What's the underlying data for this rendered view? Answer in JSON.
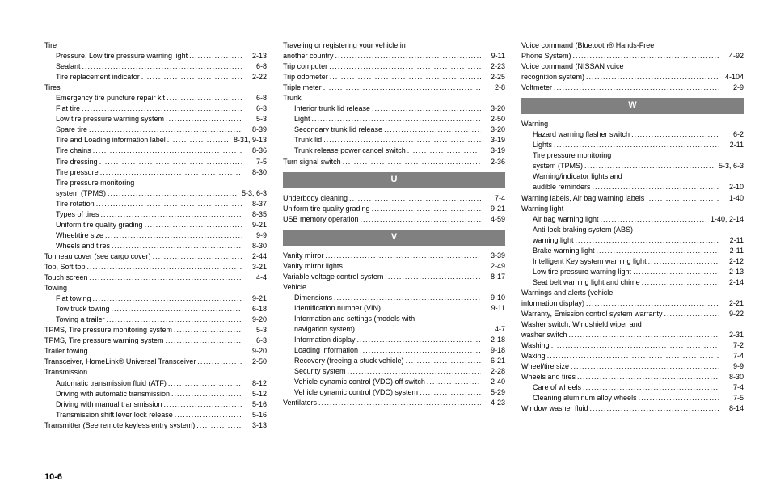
{
  "pageNumber": "10-6",
  "col1": [
    {
      "type": "heading",
      "text": "Tire"
    },
    {
      "type": "entry",
      "indent": true,
      "label": "Pressure, Low tire pressure warning light",
      "page": "2-13"
    },
    {
      "type": "entry",
      "indent": true,
      "label": "Sealant",
      "page": "6-8"
    },
    {
      "type": "entry",
      "indent": true,
      "label": "Tire replacement indicator",
      "page": "2-22"
    },
    {
      "type": "heading",
      "text": "Tires"
    },
    {
      "type": "entry",
      "indent": true,
      "label": "Emergency tire puncture repair kit",
      "page": "6-8"
    },
    {
      "type": "entry",
      "indent": true,
      "label": "Flat tire",
      "page": "6-3"
    },
    {
      "type": "entry",
      "indent": true,
      "label": "Low tire pressure warning system",
      "page": "5-3"
    },
    {
      "type": "entry",
      "indent": true,
      "label": "Spare tire",
      "page": "8-39"
    },
    {
      "type": "entry",
      "indent": true,
      "label": "Tire and Loading information label",
      "page": "8-31, 9-13"
    },
    {
      "type": "entry",
      "indent": true,
      "label": "Tire chains",
      "page": "8-36"
    },
    {
      "type": "entry",
      "indent": true,
      "label": "Tire dressing",
      "page": "7-5"
    },
    {
      "type": "entry",
      "indent": true,
      "label": "Tire pressure",
      "page": "8-30"
    },
    {
      "type": "heading",
      "indent": true,
      "text": "Tire pressure monitoring"
    },
    {
      "type": "entry",
      "indent": true,
      "label": "system (TPMS)",
      "page": "5-3, 6-3"
    },
    {
      "type": "entry",
      "indent": true,
      "label": "Tire rotation",
      "page": "8-37"
    },
    {
      "type": "entry",
      "indent": true,
      "label": "Types of tires",
      "page": "8-35"
    },
    {
      "type": "entry",
      "indent": true,
      "label": "Uniform tire quality grading",
      "page": "9-21"
    },
    {
      "type": "entry",
      "indent": true,
      "label": "Wheel/tire size",
      "page": "9-9"
    },
    {
      "type": "entry",
      "indent": true,
      "label": "Wheels and tires",
      "page": "8-30"
    },
    {
      "type": "entry",
      "label": "Tonneau cover (see cargo cover)",
      "page": "2-44"
    },
    {
      "type": "entry",
      "label": "Top, Soft top",
      "page": "3-21"
    },
    {
      "type": "entry",
      "label": "Touch screen",
      "page": "4-4"
    },
    {
      "type": "heading",
      "text": "Towing"
    },
    {
      "type": "entry",
      "indent": true,
      "label": "Flat towing",
      "page": "9-21"
    },
    {
      "type": "entry",
      "indent": true,
      "label": "Tow truck towing",
      "page": "6-18"
    },
    {
      "type": "entry",
      "indent": true,
      "label": "Towing a trailer",
      "page": "9-20"
    },
    {
      "type": "entry",
      "label": "TPMS, Tire pressure monitoring system",
      "page": "5-3"
    },
    {
      "type": "entry",
      "label": "TPMS, Tire pressure warning system",
      "page": "6-3"
    },
    {
      "type": "entry",
      "label": "Trailer towing",
      "page": "9-20"
    },
    {
      "type": "entry",
      "label": "Transceiver, HomeLink® Universal Transceiver",
      "page": "2-50"
    },
    {
      "type": "heading",
      "text": "Transmission"
    },
    {
      "type": "entry",
      "indent": true,
      "label": "Automatic transmission fluid (ATF)",
      "page": "8-12"
    },
    {
      "type": "entry",
      "indent": true,
      "label": "Driving with automatic transmission",
      "page": "5-12"
    },
    {
      "type": "entry",
      "indent": true,
      "label": "Driving with manual transmission",
      "page": "5-16"
    },
    {
      "type": "entry",
      "indent": true,
      "label": "Transmission shift lever lock release",
      "page": "5-16"
    },
    {
      "type": "entry",
      "label": "Transmitter (See remote keyless entry system)",
      "page": "3-13"
    }
  ],
  "col2": [
    {
      "type": "heading",
      "text": "Traveling or registering your vehicle in"
    },
    {
      "type": "entry",
      "label": "another country",
      "page": "9-11"
    },
    {
      "type": "entry",
      "label": "Trip computer",
      "page": "2-23"
    },
    {
      "type": "entry",
      "label": "Trip odometer",
      "page": "2-25"
    },
    {
      "type": "entry",
      "label": "Triple meter",
      "page": "2-8"
    },
    {
      "type": "heading",
      "text": "Trunk"
    },
    {
      "type": "entry",
      "indent": true,
      "label": "Interior trunk lid release",
      "page": "3-20"
    },
    {
      "type": "entry",
      "indent": true,
      "label": "Light",
      "page": "2-50"
    },
    {
      "type": "entry",
      "indent": true,
      "label": "Secondary trunk lid release",
      "page": "3-20"
    },
    {
      "type": "entry",
      "indent": true,
      "label": "Trunk lid",
      "page": "3-19"
    },
    {
      "type": "entry",
      "indent": true,
      "label": "Trunk release power cancel switch",
      "page": "3-19"
    },
    {
      "type": "entry",
      "label": "Turn signal switch",
      "page": "2-36"
    },
    {
      "type": "section",
      "letter": "U"
    },
    {
      "type": "entry",
      "label": "Underbody cleaning",
      "page": "7-4"
    },
    {
      "type": "entry",
      "label": "Uniform tire quality grading",
      "page": "9-21"
    },
    {
      "type": "entry",
      "label": "USB memory operation",
      "page": "4-59"
    },
    {
      "type": "section",
      "letter": "V"
    },
    {
      "type": "entry",
      "label": "Vanity mirror",
      "page": "3-39"
    },
    {
      "type": "entry",
      "label": "Vanity mirror lights",
      "page": "2-49"
    },
    {
      "type": "entry",
      "label": "Variable voltage control system",
      "page": "8-17"
    },
    {
      "type": "heading",
      "text": "Vehicle"
    },
    {
      "type": "entry",
      "indent": true,
      "label": "Dimensions",
      "page": "9-10"
    },
    {
      "type": "entry",
      "indent": true,
      "label": "Identification number (VIN)",
      "page": "9-11"
    },
    {
      "type": "heading",
      "indent": true,
      "text": "Information and settings (models with"
    },
    {
      "type": "entry",
      "indent": true,
      "label": "navigation system)",
      "page": "4-7"
    },
    {
      "type": "entry",
      "indent": true,
      "label": "Information display",
      "page": "2-18"
    },
    {
      "type": "entry",
      "indent": true,
      "label": "Loading information",
      "page": "9-18"
    },
    {
      "type": "entry",
      "indent": true,
      "label": "Recovery (freeing a stuck vehicle)",
      "page": "6-21"
    },
    {
      "type": "entry",
      "indent": true,
      "label": "Security system",
      "page": "2-28"
    },
    {
      "type": "entry",
      "indent": true,
      "label": "Vehicle dynamic control (VDC) off switch",
      "page": "2-40"
    },
    {
      "type": "entry",
      "indent": true,
      "label": "Vehicle dynamic control (VDC) system",
      "page": "5-29"
    },
    {
      "type": "entry",
      "label": "Ventilators",
      "page": "4-23"
    }
  ],
  "col3": [
    {
      "type": "heading",
      "text": "Voice command (Bluetooth® Hands-Free"
    },
    {
      "type": "entry",
      "label": "Phone System)",
      "page": "4-92"
    },
    {
      "type": "heading",
      "text": "Voice command (NISSAN voice"
    },
    {
      "type": "entry",
      "label": "recognition system)",
      "page": "4-104"
    },
    {
      "type": "entry",
      "label": "Voltmeter",
      "page": "2-9"
    },
    {
      "type": "section",
      "letter": "W"
    },
    {
      "type": "heading",
      "text": "Warning"
    },
    {
      "type": "entry",
      "indent": true,
      "label": "Hazard warning flasher switch",
      "page": "6-2"
    },
    {
      "type": "entry",
      "indent": true,
      "label": "Lights",
      "page": "2-11"
    },
    {
      "type": "heading",
      "indent": true,
      "text": "Tire pressure monitoring"
    },
    {
      "type": "entry",
      "indent": true,
      "label": "system (TPMS)",
      "page": "5-3, 6-3"
    },
    {
      "type": "heading",
      "indent": true,
      "text": "Warning/indicator lights and"
    },
    {
      "type": "entry",
      "indent": true,
      "label": "audible reminders",
      "page": "2-10"
    },
    {
      "type": "entry",
      "label": "Warning labels, Air bag warning labels",
      "page": "1-40"
    },
    {
      "type": "heading",
      "text": "Warning light"
    },
    {
      "type": "entry",
      "indent": true,
      "label": "Air bag warning light",
      "page": "1-40, 2-14"
    },
    {
      "type": "heading",
      "indent": true,
      "text": "Anti-lock braking system (ABS)"
    },
    {
      "type": "entry",
      "indent": true,
      "label": "warning light",
      "page": "2-11"
    },
    {
      "type": "entry",
      "indent": true,
      "label": "Brake warning light",
      "page": "2-11"
    },
    {
      "type": "entry",
      "indent": true,
      "label": "Intelligent Key system warning light",
      "page": "2-12"
    },
    {
      "type": "entry",
      "indent": true,
      "label": "Low tire pressure warning light",
      "page": "2-13"
    },
    {
      "type": "entry",
      "indent": true,
      "label": "Seat belt warning light and chime",
      "page": "2-14"
    },
    {
      "type": "heading",
      "text": "Warnings and alerts (vehicle"
    },
    {
      "type": "entry",
      "label": "information display)",
      "page": "2-21"
    },
    {
      "type": "entry",
      "label": "Warranty, Emission control system warranty",
      "page": "9-22"
    },
    {
      "type": "heading",
      "text": "Washer switch, Windshield wiper and"
    },
    {
      "type": "entry",
      "label": "washer switch",
      "page": "2-31"
    },
    {
      "type": "entry",
      "label": "Washing",
      "page": "7-2"
    },
    {
      "type": "entry",
      "label": "Waxing",
      "page": "7-4"
    },
    {
      "type": "entry",
      "label": "Wheel/tire size",
      "page": "9-9"
    },
    {
      "type": "entry",
      "label": "Wheels and tires",
      "page": "8-30"
    },
    {
      "type": "entry",
      "indent": true,
      "label": "Care of wheels",
      "page": "7-4"
    },
    {
      "type": "entry",
      "indent": true,
      "label": "Cleaning aluminum alloy wheels",
      "page": "7-5"
    },
    {
      "type": "entry",
      "label": "Window washer fluid",
      "page": "8-14"
    }
  ]
}
